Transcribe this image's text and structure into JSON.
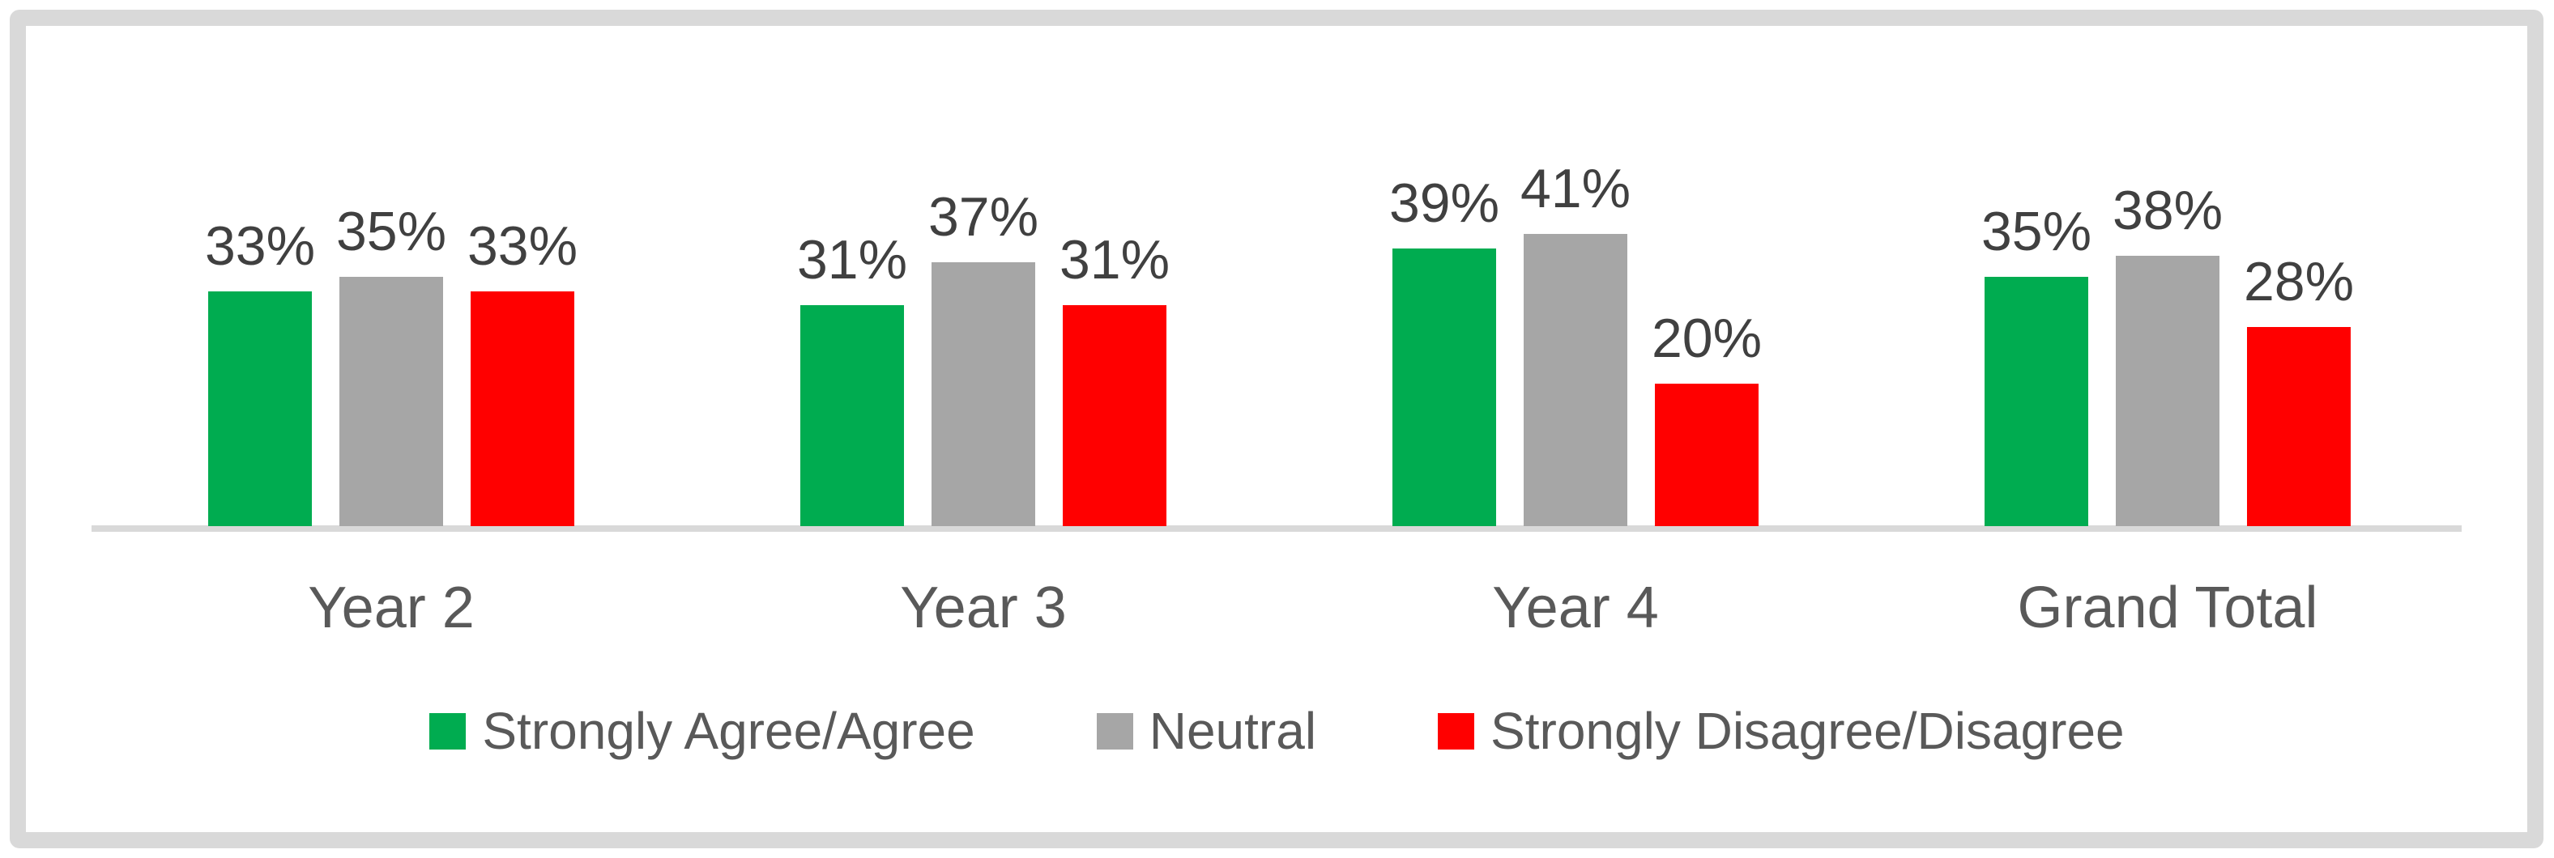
{
  "chart_data": {
    "type": "bar",
    "title": "",
    "categories": [
      "Year 2",
      "Year 3",
      "Year 4",
      "Grand Total"
    ],
    "series": [
      {
        "name": "Strongly Agree/Agree",
        "color": "#00ac50",
        "values": [
          33,
          31,
          39,
          35
        ],
        "labels": [
          "33%",
          "31%",
          "39%",
          "35%"
        ]
      },
      {
        "name": "Neutral",
        "color": "#a6a6a6",
        "values": [
          35,
          37,
          41,
          38
        ],
        "labels": [
          "35%",
          "37%",
          "41%",
          "38%"
        ]
      },
      {
        "name": "Strongly Disagree/Disagree",
        "color": "#ff0000",
        "values": [
          33,
          31,
          20,
          28
        ],
        "labels": [
          "33%",
          "31%",
          "20%",
          "28%"
        ]
      }
    ],
    "value_format": "percent",
    "ylim": [
      0,
      45
    ],
    "grid": false,
    "y_axis_visible": false,
    "legend_position": "bottom",
    "axis_color": "#d9d9d9",
    "frame_color": "#d9d9d9",
    "data_label_color": "#404040",
    "category_label_color": "#595959",
    "legend_text_color": "#595959"
  }
}
